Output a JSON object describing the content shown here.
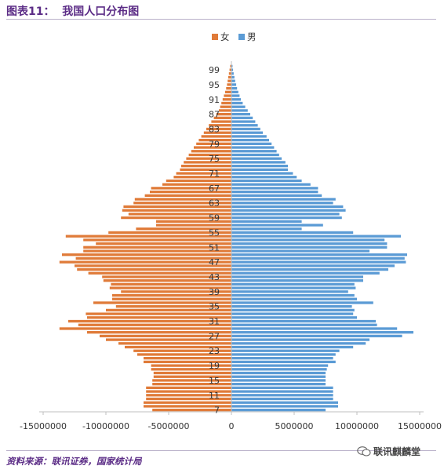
{
  "header": {
    "title": "图表11：  我国人口分布图"
  },
  "footer": {
    "source": "资料来源：联讯证券，国家统计局",
    "watermark": "联讯麒麟堂"
  },
  "colors": {
    "female": "#e07b39",
    "male": "#5b9bd5",
    "accent": "#5b2c86"
  },
  "chart_data": {
    "type": "bar",
    "orientation": "horizontal",
    "title": "",
    "legend": [
      "女",
      "男"
    ],
    "legend_position": "top",
    "xlim": [
      -15000000,
      15000000
    ],
    "x_ticks": [
      -15000000,
      -10000000,
      -5000000,
      0,
      5000000,
      10000000,
      15000000
    ],
    "x_tick_labels": [
      "-15000000",
      "-10000000",
      "-5000000",
      "0",
      "5000000",
      "10000000",
      "15000000"
    ],
    "y_tick_labels": [
      "99",
      "95",
      "91",
      "87",
      "83",
      "79",
      "75",
      "71",
      "67",
      "63",
      "59",
      "55",
      "51",
      "47",
      "43",
      "39",
      "35",
      "31",
      "27",
      "23",
      "19",
      "15",
      "11",
      "7"
    ],
    "ages": [
      7,
      8,
      9,
      10,
      11,
      12,
      13,
      14,
      15,
      16,
      17,
      18,
      19,
      20,
      21,
      22,
      23,
      24,
      25,
      26,
      27,
      28,
      29,
      30,
      31,
      32,
      33,
      34,
      35,
      36,
      37,
      38,
      39,
      40,
      41,
      42,
      43,
      44,
      45,
      46,
      47,
      48,
      49,
      50,
      51,
      52,
      53,
      54,
      55,
      56,
      57,
      58,
      59,
      60,
      61,
      62,
      63,
      64,
      65,
      66,
      67,
      68,
      69,
      70,
      71,
      72,
      73,
      74,
      75,
      76,
      77,
      78,
      79,
      80,
      81,
      82,
      83,
      84,
      85,
      86,
      87,
      88,
      89,
      90,
      91,
      92,
      93,
      94,
      95,
      96,
      97,
      98,
      99,
      100
    ],
    "series": [
      {
        "name": "女",
        "values": [
          -6300000,
          -7000000,
          -7000000,
          -6800000,
          -6800000,
          -6800000,
          -6800000,
          -6300000,
          -6300000,
          -6200000,
          -6200000,
          -6400000,
          -6400000,
          -7000000,
          -7000000,
          -7500000,
          -7800000,
          -8500000,
          -9000000,
          -10000000,
          -10500000,
          -11500000,
          -13700000,
          -12200000,
          -13000000,
          -11500000,
          -11600000,
          -10000000,
          -9200000,
          -11000000,
          -9500000,
          -9500000,
          -8800000,
          -9700000,
          -9600000,
          -10200000,
          -10300000,
          -11400000,
          -12300000,
          -12500000,
          -13700000,
          -12400000,
          -13500000,
          -11800000,
          -11800000,
          -10800000,
          -11800000,
          -13200000,
          -9800000,
          -7600000,
          -6000000,
          -6000000,
          -8800000,
          -8200000,
          -8700000,
          -8600000,
          -7800000,
          -7700000,
          -6900000,
          -6500000,
          -6400000,
          -5500000,
          -5200000,
          -4600000,
          -4400000,
          -4100000,
          -4000000,
          -3800000,
          -3600000,
          -3400000,
          -3200000,
          -3000000,
          -2800000,
          -2600000,
          -2400000,
          -2200000,
          -2000000,
          -1800000,
          -1600000,
          -1400000,
          -1200000,
          -1000000,
          -900000,
          -800000,
          -700000,
          -600000,
          -500000,
          -420000,
          -350000,
          -300000,
          -250000,
          -200000,
          -150000,
          -100000
        ]
      },
      {
        "name": "男",
        "values": [
          7500000,
          8500000,
          8500000,
          8100000,
          8100000,
          8100000,
          8100000,
          7500000,
          7500000,
          7500000,
          7500000,
          7600000,
          7700000,
          8300000,
          8100000,
          8300000,
          8600000,
          9700000,
          10700000,
          11000000,
          13600000,
          14500000,
          13200000,
          11600000,
          11500000,
          10000000,
          9700000,
          9800000,
          9600000,
          11300000,
          10000000,
          9800000,
          9300000,
          9900000,
          9800000,
          10500000,
          10500000,
          11800000,
          12500000,
          13000000,
          13900000,
          13800000,
          14000000,
          11000000,
          12400000,
          12400000,
          12200000,
          13500000,
          9700000,
          5600000,
          7300000,
          5600000,
          8800000,
          8600000,
          9100000,
          8900000,
          8100000,
          8300000,
          7200000,
          6900000,
          6900000,
          6300000,
          5600000,
          5200000,
          4900000,
          4500000,
          4500000,
          4300000,
          4000000,
          3800000,
          3600000,
          3400000,
          3200000,
          3000000,
          2800000,
          2500000,
          2300000,
          2100000,
          1900000,
          1700000,
          1500000,
          1300000,
          1100000,
          900000,
          750000,
          650000,
          550000,
          450000,
          380000,
          300000,
          240000,
          180000,
          130000,
          90000
        ]
      }
    ]
  }
}
